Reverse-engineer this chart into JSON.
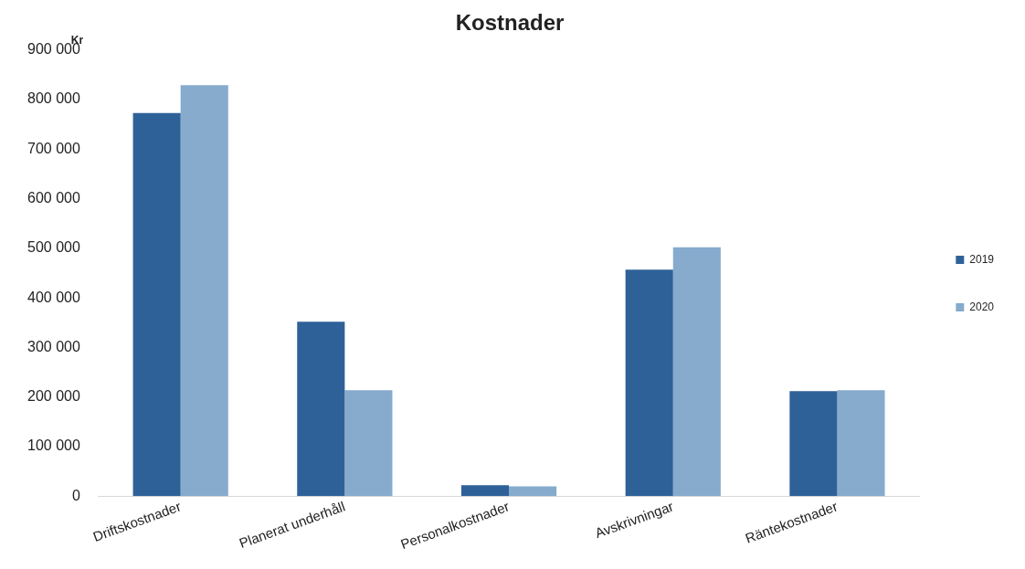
{
  "chart_data": {
    "type": "bar",
    "title": "Kostnader",
    "ylabel": "Kr",
    "categories": [
      "Driftskostnader",
      "Planerat underhåll",
      "Personalkostnader",
      "Avskrivningar",
      "Räntekostnader"
    ],
    "series": [
      {
        "name": "2019",
        "color": "#2f6199",
        "values": [
          773000,
          352000,
          22000,
          457000,
          212000
        ]
      },
      {
        "name": "2020",
        "color": "#86abcd",
        "values": [
          829000,
          214000,
          20000,
          502000,
          214000
        ]
      }
    ],
    "ylim": [
      0,
      900000
    ],
    "yticks": [
      {
        "value": 0,
        "label": "0"
      },
      {
        "value": 100000,
        "label": "100 000"
      },
      {
        "value": 200000,
        "label": "200 000"
      },
      {
        "value": 300000,
        "label": "300 000"
      },
      {
        "value": 400000,
        "label": "400 000"
      },
      {
        "value": 500000,
        "label": "500 000"
      },
      {
        "value": 600000,
        "label": "600 000"
      },
      {
        "value": 700000,
        "label": "700 000"
      },
      {
        "value": 800000,
        "label": "800 000"
      },
      {
        "value": 900000,
        "label": "900 000"
      }
    ],
    "grid": false,
    "legend": "right"
  }
}
